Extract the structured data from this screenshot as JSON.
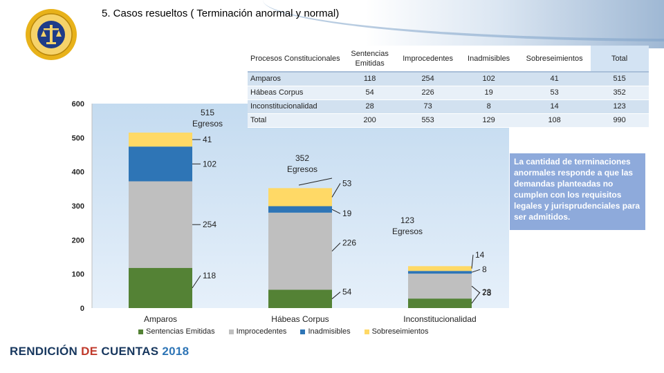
{
  "slide": {
    "title": "5. Casos resueltos ( Terminación anormal y normal)",
    "note": "La cantidad de terminaciones anormales responde a que las demandas planteadas no cumplen con los requisitos legales y jurisprudenciales para ser admitidos.",
    "brand": {
      "part1": "RENDICIÓN ",
      "part2": "DE",
      "part3": " CUENTAS ",
      "part4": "2018"
    },
    "seal_text": "ÓRGANO JUDICIAL · CORTE SUPREMA DE JUSTICIA"
  },
  "colors": {
    "sentencias": "#548235",
    "improcedentes": "#bfbfbf",
    "inadmisibles": "#2e75b6",
    "sobreseimientos": "#ffd966"
  },
  "table": {
    "headers": [
      "Procesos Constitucionales",
      "Sentencias Emitidas",
      "Improcedentes",
      "Inadmisibles",
      "Sobreseimientos",
      "Total"
    ],
    "rows": [
      [
        "Amparos",
        "118",
        "254",
        "102",
        "41",
        "515"
      ],
      [
        "Hábeas Corpus",
        "54",
        "226",
        "19",
        "53",
        "352"
      ],
      [
        "Inconstitucionalidad",
        "28",
        "73",
        "8",
        "14",
        "123"
      ],
      [
        "Total",
        "200",
        "553",
        "129",
        "108",
        "990"
      ]
    ]
  },
  "chart_data": {
    "type": "bar",
    "stacked": true,
    "categories": [
      "Amparos",
      "Hábeas Corpus",
      "Inconstitucionalidad"
    ],
    "series": [
      {
        "name": "Sentencias Emitidas",
        "values": [
          118,
          54,
          28
        ],
        "color": "#548235"
      },
      {
        "name": "Improcedentes",
        "values": [
          254,
          226,
          73
        ],
        "color": "#bfbfbf"
      },
      {
        "name": "Inadmisibles",
        "values": [
          102,
          19,
          8
        ],
        "color": "#2e75b6"
      },
      {
        "name": "Sobreseimientos",
        "values": [
          41,
          53,
          14
        ],
        "color": "#ffd966"
      }
    ],
    "totals": [
      515,
      352,
      123
    ],
    "total_labels": [
      "515\nEgresos",
      "352\nEgresos",
      "123\nEgresos"
    ],
    "yticks": [
      0,
      100,
      200,
      300,
      400,
      500,
      600
    ],
    "ylim": [
      0,
      600
    ],
    "legend_position": "bottom"
  }
}
